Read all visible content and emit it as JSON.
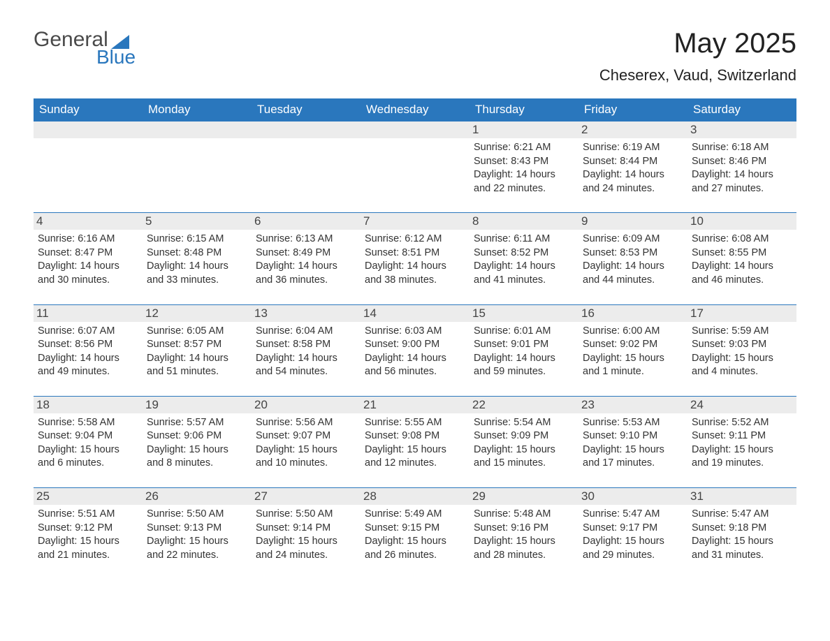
{
  "logo": {
    "text1": "General",
    "text2": "Blue"
  },
  "title": "May 2025",
  "location": "Cheserex, Vaud, Switzerland",
  "colors": {
    "header_bg": "#2a77bd",
    "header_text": "#ffffff",
    "daynum_bg": "#ececec",
    "body_text": "#333333",
    "page_bg": "#ffffff"
  },
  "weekdays": [
    "Sunday",
    "Monday",
    "Tuesday",
    "Wednesday",
    "Thursday",
    "Friday",
    "Saturday"
  ],
  "weeks": [
    [
      {
        "empty": true
      },
      {
        "empty": true
      },
      {
        "empty": true
      },
      {
        "empty": true
      },
      {
        "day": "1",
        "sunrise": "6:21 AM",
        "sunset": "8:43 PM",
        "daylight": "14 hours and 22 minutes."
      },
      {
        "day": "2",
        "sunrise": "6:19 AM",
        "sunset": "8:44 PM",
        "daylight": "14 hours and 24 minutes."
      },
      {
        "day": "3",
        "sunrise": "6:18 AM",
        "sunset": "8:46 PM",
        "daylight": "14 hours and 27 minutes."
      }
    ],
    [
      {
        "day": "4",
        "sunrise": "6:16 AM",
        "sunset": "8:47 PM",
        "daylight": "14 hours and 30 minutes."
      },
      {
        "day": "5",
        "sunrise": "6:15 AM",
        "sunset": "8:48 PM",
        "daylight": "14 hours and 33 minutes."
      },
      {
        "day": "6",
        "sunrise": "6:13 AM",
        "sunset": "8:49 PM",
        "daylight": "14 hours and 36 minutes."
      },
      {
        "day": "7",
        "sunrise": "6:12 AM",
        "sunset": "8:51 PM",
        "daylight": "14 hours and 38 minutes."
      },
      {
        "day": "8",
        "sunrise": "6:11 AM",
        "sunset": "8:52 PM",
        "daylight": "14 hours and 41 minutes."
      },
      {
        "day": "9",
        "sunrise": "6:09 AM",
        "sunset": "8:53 PM",
        "daylight": "14 hours and 44 minutes."
      },
      {
        "day": "10",
        "sunrise": "6:08 AM",
        "sunset": "8:55 PM",
        "daylight": "14 hours and 46 minutes."
      }
    ],
    [
      {
        "day": "11",
        "sunrise": "6:07 AM",
        "sunset": "8:56 PM",
        "daylight": "14 hours and 49 minutes."
      },
      {
        "day": "12",
        "sunrise": "6:05 AM",
        "sunset": "8:57 PM",
        "daylight": "14 hours and 51 minutes."
      },
      {
        "day": "13",
        "sunrise": "6:04 AM",
        "sunset": "8:58 PM",
        "daylight": "14 hours and 54 minutes."
      },
      {
        "day": "14",
        "sunrise": "6:03 AM",
        "sunset": "9:00 PM",
        "daylight": "14 hours and 56 minutes."
      },
      {
        "day": "15",
        "sunrise": "6:01 AM",
        "sunset": "9:01 PM",
        "daylight": "14 hours and 59 minutes."
      },
      {
        "day": "16",
        "sunrise": "6:00 AM",
        "sunset": "9:02 PM",
        "daylight": "15 hours and 1 minute."
      },
      {
        "day": "17",
        "sunrise": "5:59 AM",
        "sunset": "9:03 PM",
        "daylight": "15 hours and 4 minutes."
      }
    ],
    [
      {
        "day": "18",
        "sunrise": "5:58 AM",
        "sunset": "9:04 PM",
        "daylight": "15 hours and 6 minutes."
      },
      {
        "day": "19",
        "sunrise": "5:57 AM",
        "sunset": "9:06 PM",
        "daylight": "15 hours and 8 minutes."
      },
      {
        "day": "20",
        "sunrise": "5:56 AM",
        "sunset": "9:07 PM",
        "daylight": "15 hours and 10 minutes."
      },
      {
        "day": "21",
        "sunrise": "5:55 AM",
        "sunset": "9:08 PM",
        "daylight": "15 hours and 12 minutes."
      },
      {
        "day": "22",
        "sunrise": "5:54 AM",
        "sunset": "9:09 PM",
        "daylight": "15 hours and 15 minutes."
      },
      {
        "day": "23",
        "sunrise": "5:53 AM",
        "sunset": "9:10 PM",
        "daylight": "15 hours and 17 minutes."
      },
      {
        "day": "24",
        "sunrise": "5:52 AM",
        "sunset": "9:11 PM",
        "daylight": "15 hours and 19 minutes."
      }
    ],
    [
      {
        "day": "25",
        "sunrise": "5:51 AM",
        "sunset": "9:12 PM",
        "daylight": "15 hours and 21 minutes."
      },
      {
        "day": "26",
        "sunrise": "5:50 AM",
        "sunset": "9:13 PM",
        "daylight": "15 hours and 22 minutes."
      },
      {
        "day": "27",
        "sunrise": "5:50 AM",
        "sunset": "9:14 PM",
        "daylight": "15 hours and 24 minutes."
      },
      {
        "day": "28",
        "sunrise": "5:49 AM",
        "sunset": "9:15 PM",
        "daylight": "15 hours and 26 minutes."
      },
      {
        "day": "29",
        "sunrise": "5:48 AM",
        "sunset": "9:16 PM",
        "daylight": "15 hours and 28 minutes."
      },
      {
        "day": "30",
        "sunrise": "5:47 AM",
        "sunset": "9:17 PM",
        "daylight": "15 hours and 29 minutes."
      },
      {
        "day": "31",
        "sunrise": "5:47 AM",
        "sunset": "9:18 PM",
        "daylight": "15 hours and 31 minutes."
      }
    ]
  ],
  "labels": {
    "sunrise": "Sunrise: ",
    "sunset": "Sunset: ",
    "daylight": "Daylight: "
  }
}
